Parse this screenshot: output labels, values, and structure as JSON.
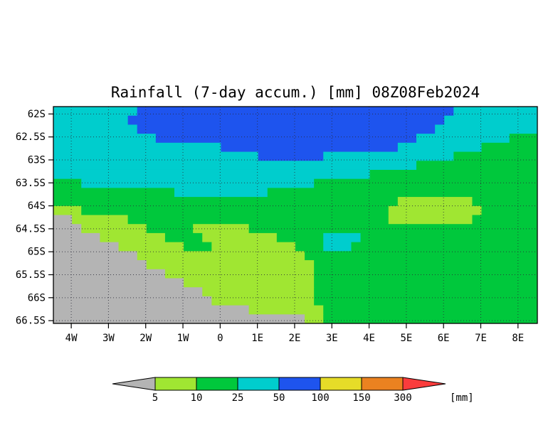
{
  "title": "Rainfall (7-day accum.) [mm] 08Z08Feb2024",
  "chart_data": {
    "type": "heatmap",
    "title": "Rainfall (7-day accum.) [mm] 08Z08Feb2024",
    "variable": "Rainfall (7-day accum.)",
    "units": "mm",
    "valid_time_label": "08Z08Feb2024",
    "x_axis": {
      "tick_labels": [
        "4W",
        "3W",
        "2W",
        "1W",
        "0",
        "1E",
        "2E",
        "3E",
        "4E",
        "5E",
        "6E",
        "7E",
        "8E"
      ],
      "tick_values": [
        -4,
        -3,
        -2,
        -1,
        0,
        1,
        2,
        3,
        4,
        5,
        6,
        7,
        8
      ],
      "range": [
        -4.48,
        8.52
      ]
    },
    "y_axis": {
      "tick_labels": [
        "62S",
        "62.5S",
        "63S",
        "63.5S",
        "64S",
        "64.5S",
        "65S",
        "65.5S",
        "66S",
        "66.5S"
      ],
      "tick_values": [
        62,
        62.5,
        63,
        63.5,
        64,
        64.5,
        65,
        65.5,
        66,
        66.5
      ],
      "range": [
        61.84,
        66.56
      ]
    },
    "levels_mm": [
      5,
      10,
      25,
      50,
      100,
      150,
      300
    ],
    "palette": {
      "g": "#b4b4b4",
      "y": "#a0e632",
      "G": "#00c83c",
      "c": "#00cdcd",
      "b": "#1e54ee",
      "Y": "#e6dc28",
      "o": "#eb8220",
      "r": "#fa3c3c"
    },
    "classes": [
      {
        "key": "g",
        "range_mm": "< 5"
      },
      {
        "key": "y",
        "range_mm": "5-10"
      },
      {
        "key": "G",
        "range_mm": "10-25"
      },
      {
        "key": "c",
        "range_mm": "25-50"
      },
      {
        "key": "b",
        "range_mm": "50-100"
      },
      {
        "key": "Y",
        "range_mm": "100-150"
      },
      {
        "key": "o",
        "range_mm": "150-300"
      },
      {
        "key": "r",
        "range_mm": "> 300"
      }
    ],
    "style": {
      "grid_color": "#2a2a38",
      "frame_color": "#000000",
      "label_color": "#000000"
    },
    "grid": {
      "cols": 52,
      "rows": [
        [
          [
            "c",
            9
          ],
          [
            "b",
            34
          ],
          [
            "c",
            9
          ]
        ],
        [
          [
            "c",
            8
          ],
          [
            "b",
            34
          ],
          [
            "c",
            10
          ]
        ],
        [
          [
            "c",
            9
          ],
          [
            "b",
            32
          ],
          [
            "c",
            11
          ]
        ],
        [
          [
            "c",
            11
          ],
          [
            "b",
            28
          ],
          [
            "c",
            10
          ],
          [
            "G",
            3
          ]
        ],
        [
          [
            "c",
            18
          ],
          [
            "b",
            19
          ],
          [
            "c",
            9
          ],
          [
            "G",
            6
          ]
        ],
        [
          [
            "c",
            22
          ],
          [
            "b",
            7
          ],
          [
            "c",
            14
          ],
          [
            "G",
            9
          ]
        ],
        [
          [
            "c",
            39
          ],
          [
            "G",
            13
          ]
        ],
        [
          [
            "c",
            34
          ],
          [
            "G",
            18
          ]
        ],
        [
          [
            "G",
            3
          ],
          [
            "c",
            25
          ],
          [
            "G",
            24
          ]
        ],
        [
          [
            "G",
            13
          ],
          [
            "c",
            10
          ],
          [
            "G",
            29
          ]
        ],
        [
          [
            "G",
            37
          ],
          [
            "y",
            8
          ],
          [
            "G",
            7
          ]
        ],
        [
          [
            "y",
            3
          ],
          [
            "G",
            33
          ],
          [
            "y",
            10
          ],
          [
            "G",
            6
          ]
        ],
        [
          [
            "g",
            2
          ],
          [
            "y",
            6
          ],
          [
            "G",
            28
          ],
          [
            "y",
            9
          ],
          [
            "G",
            7
          ]
        ],
        [
          [
            "g",
            3
          ],
          [
            "y",
            7
          ],
          [
            "G",
            5
          ],
          [
            "y",
            6
          ],
          [
            "G",
            31
          ]
        ],
        [
          [
            "g",
            5
          ],
          [
            "y",
            7
          ],
          [
            "G",
            4
          ],
          [
            "y",
            8
          ],
          [
            "G",
            5
          ],
          [
            "c",
            4
          ],
          [
            "G",
            19
          ]
        ],
        [
          [
            "g",
            7
          ],
          [
            "y",
            7
          ],
          [
            "G",
            3
          ],
          [
            "y",
            9
          ],
          [
            "G",
            3
          ],
          [
            "c",
            3
          ],
          [
            "G",
            20
          ]
        ],
        [
          [
            "g",
            9
          ],
          [
            "y",
            18
          ],
          [
            "G",
            25
          ]
        ],
        [
          [
            "g",
            10
          ],
          [
            "y",
            18
          ],
          [
            "G",
            24
          ]
        ],
        [
          [
            "g",
            12
          ],
          [
            "y",
            16
          ],
          [
            "G",
            24
          ]
        ],
        [
          [
            "g",
            14
          ],
          [
            "y",
            14
          ],
          [
            "G",
            24
          ]
        ],
        [
          [
            "g",
            16
          ],
          [
            "y",
            12
          ],
          [
            "G",
            24
          ]
        ],
        [
          [
            "g",
            17
          ],
          [
            "y",
            11
          ],
          [
            "G",
            24
          ]
        ],
        [
          [
            "g",
            21
          ],
          [
            "y",
            8
          ],
          [
            "G",
            23
          ]
        ],
        [
          [
            "g",
            27
          ],
          [
            "y",
            2
          ],
          [
            "G",
            23
          ]
        ]
      ]
    }
  },
  "colorbar": {
    "labels": [
      "5",
      "10",
      "25",
      "50",
      "100",
      "150",
      "300"
    ],
    "units_label": "[mm]",
    "label_color": "#0000a0",
    "segment_keys": [
      "g",
      "y",
      "G",
      "c",
      "b",
      "Y",
      "o",
      "r"
    ]
  }
}
